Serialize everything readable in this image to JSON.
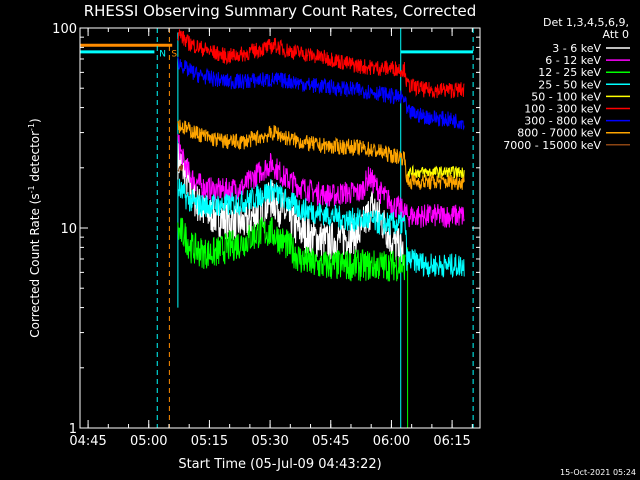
{
  "chart_data": {
    "type": "line",
    "title": "RHESSI Observing Summary Count Rates, Corrected",
    "xlabel": "Start Time (05-Jul-09 04:43:22)",
    "ylabel_main": "Corrected Count Rate (s",
    "ylabel_sup1": "-1",
    "ylabel_mid": " detector",
    "ylabel_sup2": "-1",
    "ylabel_end": ")",
    "yscale": "log",
    "ylim": [
      1,
      100
    ],
    "xlim_minutes": [
      -0.4,
      98.5
    ],
    "x_unit": "minutes since 04:43:22",
    "xticks": [
      {
        "label": "04:45",
        "minutes": 1.6
      },
      {
        "label": "05:00",
        "minutes": 16.6
      },
      {
        "label": "05:15",
        "minutes": 31.6
      },
      {
        "label": "05:30",
        "minutes": 46.6
      },
      {
        "label": "05:45",
        "minutes": 61.6
      },
      {
        "label": "06:00",
        "minutes": 76.6
      },
      {
        "label": "06:15",
        "minutes": 91.6
      }
    ],
    "yticks": [
      {
        "label": "1",
        "value": 1
      },
      {
        "label": "10",
        "value": 10
      },
      {
        "label": "100",
        "value": 100
      }
    ],
    "legend_title": [
      "Det 1,3,4,5,6,9,",
      "Att 0"
    ],
    "legend_position": "top-right",
    "series": [
      {
        "name": "3 - 6 keV",
        "color": "#ffffff",
        "points": [
          [
            23.8,
            22
          ],
          [
            25,
            20
          ],
          [
            27,
            15
          ],
          [
            30,
            12
          ],
          [
            33,
            11.5
          ],
          [
            36,
            11
          ],
          [
            40,
            10.5
          ],
          [
            44,
            12
          ],
          [
            47,
            14
          ],
          [
            50,
            12
          ],
          [
            53,
            10
          ],
          [
            57,
            9
          ],
          [
            61,
            8.5
          ],
          [
            65,
            9
          ],
          [
            69,
            9.5
          ],
          [
            72,
            13
          ],
          [
            74,
            11
          ],
          [
            77,
            8.5
          ],
          [
            79.5,
            7.5
          ]
        ],
        "noise": 0.1
      },
      {
        "name": "6 - 12 keV",
        "color": "#ff00ff",
        "points": [
          [
            23.8,
            27
          ],
          [
            25,
            22
          ],
          [
            27,
            18
          ],
          [
            30,
            16
          ],
          [
            33,
            15.5
          ],
          [
            36,
            15.5
          ],
          [
            40,
            16
          ],
          [
            44,
            19
          ],
          [
            47,
            21
          ],
          [
            50,
            18
          ],
          [
            54,
            16
          ],
          [
            58,
            15
          ],
          [
            62,
            14.5
          ],
          [
            65,
            15
          ],
          [
            69,
            15
          ],
          [
            71,
            18
          ],
          [
            74,
            15
          ],
          [
            77,
            13
          ],
          [
            80,
            12
          ],
          [
            80.4,
            11.5
          ],
          [
            82,
            11.5
          ],
          [
            88,
            11.5
          ],
          [
            92,
            11.5
          ],
          [
            94.6,
            11.5
          ]
        ],
        "noise": 0.06
      },
      {
        "name": "12 - 25 keV",
        "color": "#00ff00",
        "points": [
          [
            23.8,
            9.5
          ],
          [
            25,
            9.5
          ],
          [
            27,
            8
          ],
          [
            30,
            7.5
          ],
          [
            33,
            7.5
          ],
          [
            36,
            8
          ],
          [
            40,
            8.5
          ],
          [
            44,
            9.5
          ],
          [
            47,
            9.5
          ],
          [
            50,
            8.5
          ],
          [
            54,
            7
          ],
          [
            58,
            6.5
          ],
          [
            62,
            6.5
          ],
          [
            66,
            6.5
          ],
          [
            70,
            6.5
          ],
          [
            74,
            6.5
          ],
          [
            77,
            6.5
          ],
          [
            80,
            6.5
          ]
        ],
        "noise": 0.08
      },
      {
        "name": "25 - 50 keV",
        "color": "#00ffff",
        "points": [
          [
            23.8,
            16
          ],
          [
            26,
            14
          ],
          [
            29,
            13
          ],
          [
            32,
            13
          ],
          [
            36,
            13
          ],
          [
            40,
            13.5
          ],
          [
            44,
            14.5
          ],
          [
            47,
            15.5
          ],
          [
            50,
            14
          ],
          [
            54,
            12.5
          ],
          [
            58,
            12
          ],
          [
            62,
            11.5
          ],
          [
            66,
            11
          ],
          [
            70,
            11
          ],
          [
            74,
            10.5
          ],
          [
            77,
            10.5
          ],
          [
            80,
            10.5
          ],
          [
            80.4,
            7
          ],
          [
            86,
            6.5
          ],
          [
            90,
            6.5
          ],
          [
            94,
            6.5
          ],
          [
            94.6,
            6.5
          ]
        ],
        "noise": 0.06
      },
      {
        "name": "50 - 100 keV",
        "color": "#ffff00",
        "points": [
          [
            80.4,
            19
          ],
          [
            85,
            19
          ],
          [
            90,
            19
          ],
          [
            94.6,
            19
          ]
        ],
        "noise": 0.03
      },
      {
        "name": "100 - 300 keV",
        "color": "#ff0000",
        "points": [
          [
            23.8,
            95
          ],
          [
            26,
            85
          ],
          [
            29,
            80
          ],
          [
            32,
            76
          ],
          [
            36,
            72
          ],
          [
            40,
            74
          ],
          [
            44,
            78
          ],
          [
            48,
            82
          ],
          [
            50,
            78
          ],
          [
            54,
            75
          ],
          [
            58,
            72
          ],
          [
            62,
            70
          ],
          [
            66,
            66
          ],
          [
            70,
            64
          ],
          [
            74,
            63
          ],
          [
            77,
            63
          ],
          [
            80,
            62
          ],
          [
            80.4,
            52
          ],
          [
            85,
            49
          ],
          [
            90,
            49
          ],
          [
            94.6,
            49
          ]
        ],
        "noise": 0.04
      },
      {
        "name": "300 - 800 keV",
        "color": "#0000ff",
        "points": [
          [
            23.8,
            68
          ],
          [
            26,
            62
          ],
          [
            29,
            58
          ],
          [
            32,
            56
          ],
          [
            36,
            54
          ],
          [
            40,
            54
          ],
          [
            44,
            55
          ],
          [
            48,
            55
          ],
          [
            52,
            54
          ],
          [
            56,
            52
          ],
          [
            60,
            51
          ],
          [
            64,
            50
          ],
          [
            68,
            49
          ],
          [
            72,
            48
          ],
          [
            76,
            46
          ],
          [
            80,
            44
          ],
          [
            80.4,
            38
          ],
          [
            85,
            36
          ],
          [
            90,
            35
          ],
          [
            94.6,
            34
          ]
        ],
        "noise": 0.04
      },
      {
        "name": "800 - 7000 keV",
        "color": "#ffa500",
        "points": [
          [
            23.8,
            33
          ],
          [
            25,
            32
          ],
          [
            28,
            30
          ],
          [
            32,
            28
          ],
          [
            36,
            27
          ],
          [
            40,
            27
          ],
          [
            44,
            28.5
          ],
          [
            48,
            30
          ],
          [
            50,
            28.5
          ],
          [
            54,
            27
          ],
          [
            58,
            26
          ],
          [
            62,
            25.5
          ],
          [
            66,
            25.5
          ],
          [
            70,
            25
          ],
          [
            74,
            24
          ],
          [
            77,
            23
          ],
          [
            80,
            22.5
          ],
          [
            80.4,
            17
          ],
          [
            85,
            17
          ],
          [
            90,
            17
          ],
          [
            94.6,
            17
          ]
        ],
        "noise": 0.04
      },
      {
        "name": "7000 - 15000 keV",
        "color": "#8b4513",
        "points": [
          [
            23.8,
            20
          ],
          [
            25,
            20
          ]
        ],
        "noise": 0.02
      }
    ],
    "attenuator_level": {
      "color": "#ff8c00",
      "value": 82,
      "from": -0.4,
      "to": 22.4
    },
    "decimation_level": {
      "color": "#00ffff",
      "value": 76,
      "from": -0.4,
      "to": 18.0
    },
    "vertical_markers": [
      {
        "minutes": 18.7,
        "color": "#00ffff",
        "style": "dashed",
        "label": "N"
      },
      {
        "minutes": 21.7,
        "color": "#ff8c00",
        "style": "dashed",
        "label": "S"
      },
      {
        "minutes": 78.9,
        "color": "#00ffff",
        "style": "solid",
        "label": ""
      },
      {
        "minutes": 96.8,
        "color": "#00ffff",
        "style": "dashed",
        "label": ""
      }
    ]
  },
  "footer": {
    "timestamp": "15-Oct-2021 05:24"
  }
}
